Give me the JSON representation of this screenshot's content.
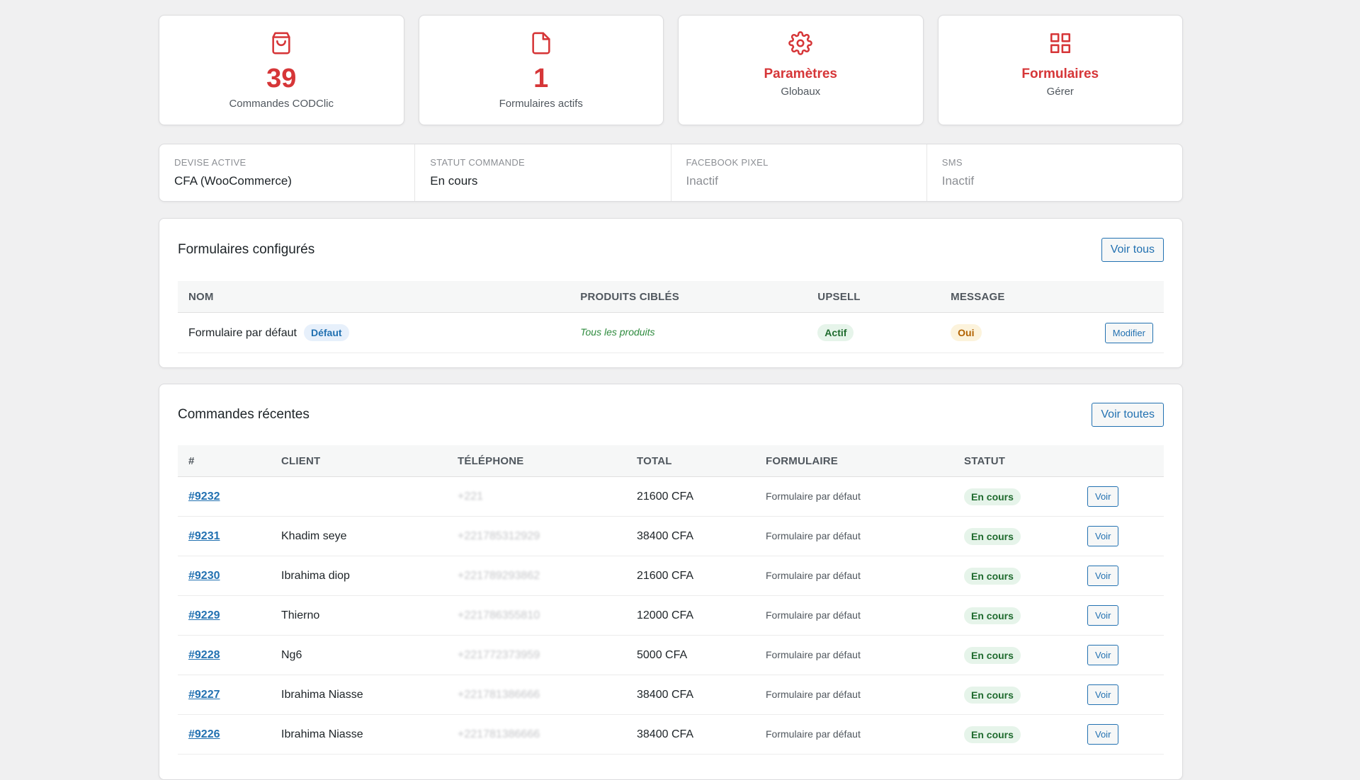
{
  "stats": [
    {
      "icon": "shopping-bag-icon",
      "number": "39",
      "label": "Commandes CODClic"
    },
    {
      "icon": "file-icon",
      "number": "1",
      "label": "Formulaires actifs"
    },
    {
      "icon": "gear-icon",
      "title": "Paramètres",
      "sub": "Globaux"
    },
    {
      "icon": "grid-icon",
      "title": "Formulaires",
      "sub": "Gérer"
    }
  ],
  "info": [
    {
      "label": "DEVISE ACTIVE",
      "value": "CFA (WooCommerce)"
    },
    {
      "label": "STATUT COMMANDE",
      "value": "En cours"
    },
    {
      "label": "FACEBOOK PIXEL",
      "value": "Inactif"
    },
    {
      "label": "SMS",
      "value": "Inactif"
    }
  ],
  "forms_panel": {
    "title": "Formulaires configurés",
    "view_all": "Voir tous",
    "headers": [
      "NOM",
      "PRODUITS CIBLÉS",
      "UPSELL",
      "MESSAGE",
      ""
    ],
    "rows": [
      {
        "name": "Formulaire par défaut",
        "badge": "Défaut",
        "products": "Tous les produits",
        "upsell": "Actif",
        "message": "Oui",
        "action": "Modifier"
      }
    ]
  },
  "orders_panel": {
    "title": "Commandes récentes",
    "view_all": "Voir toutes",
    "headers": [
      "#",
      "CLIENT",
      "TÉLÉPHONE",
      "TOTAL",
      "FORMULAIRE",
      "STATUT",
      ""
    ],
    "rows": [
      {
        "id": "#9232",
        "client": "",
        "phone": "+221",
        "total": "21600 CFA",
        "form": "Formulaire par défaut",
        "status": "En cours",
        "action": "Voir"
      },
      {
        "id": "#9231",
        "client": "Khadim seye",
        "phone": "+221785312929",
        "total": "38400 CFA",
        "form": "Formulaire par défaut",
        "status": "En cours",
        "action": "Voir"
      },
      {
        "id": "#9230",
        "client": "Ibrahima diop",
        "phone": "+221789293862",
        "total": "21600 CFA",
        "form": "Formulaire par défaut",
        "status": "En cours",
        "action": "Voir"
      },
      {
        "id": "#9229",
        "client": "Thierno",
        "phone": "+221786355810",
        "total": "12000 CFA",
        "form": "Formulaire par défaut",
        "status": "En cours",
        "action": "Voir"
      },
      {
        "id": "#9228",
        "client": "Ng6",
        "phone": "+221772373959",
        "total": "5000 CFA",
        "form": "Formulaire par défaut",
        "status": "En cours",
        "action": "Voir"
      },
      {
        "id": "#9227",
        "client": "Ibrahima Niasse",
        "phone": "+221781386666",
        "total": "38400 CFA",
        "form": "Formulaire par défaut",
        "status": "En cours",
        "action": "Voir"
      },
      {
        "id": "#9226",
        "client": "Ibrahima Niasse",
        "phone": "+221781386666",
        "total": "38400 CFA",
        "form": "Formulaire par défaut",
        "status": "En cours",
        "action": "Voir"
      }
    ]
  }
}
